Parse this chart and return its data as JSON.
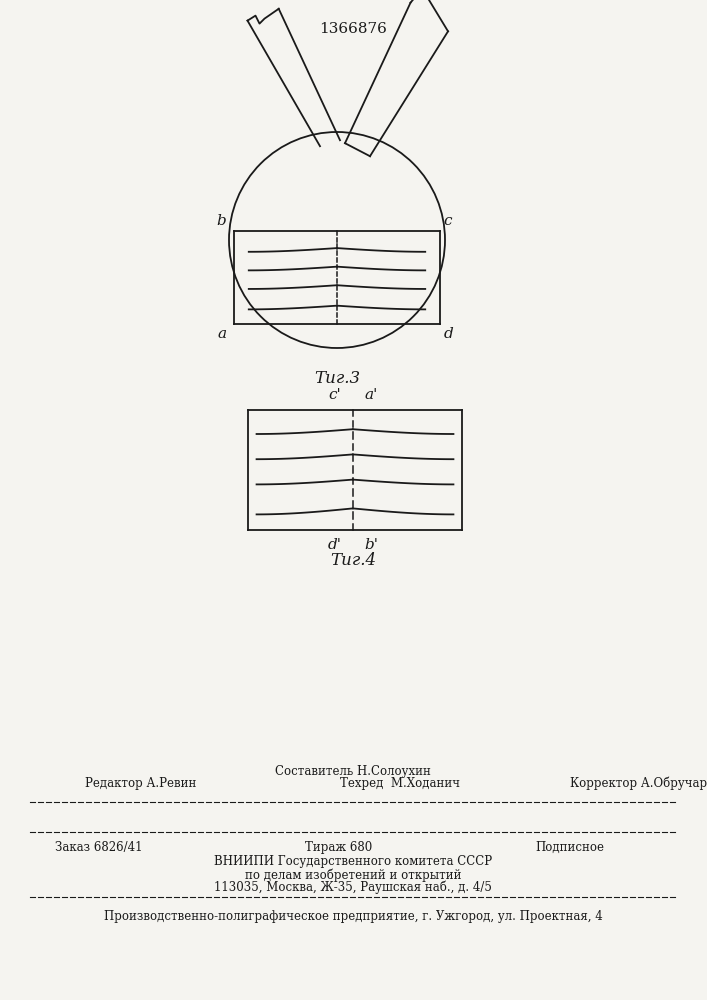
{
  "title_text": "1366876",
  "fig3_label": "Τиг.3",
  "fig4_label": "Τиг.4",
  "line_color": "#1a1a1a",
  "bg_color": "#f5f4f0"
}
